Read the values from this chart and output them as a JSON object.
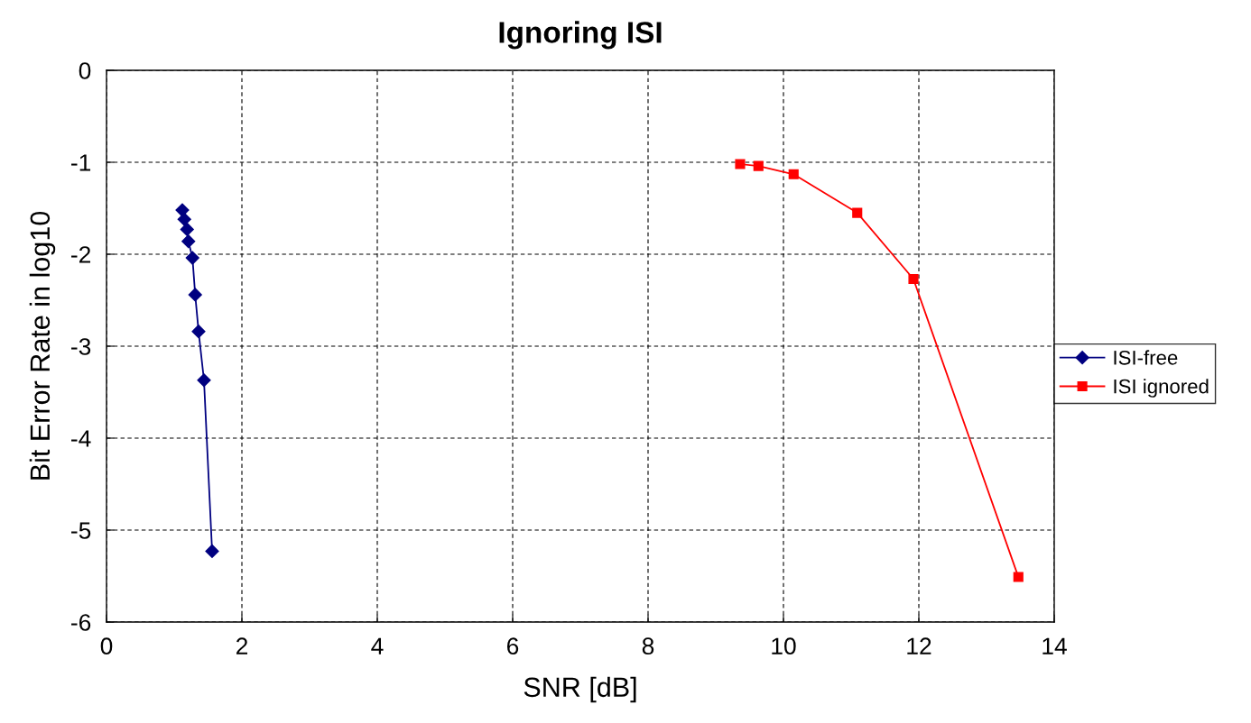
{
  "chart_data": {
    "type": "line",
    "title": "Ignoring ISI",
    "xlabel": "SNR [dB]",
    "ylabel": "Bit Error Rate in log10",
    "xlim": [
      0,
      14
    ],
    "xticks": [
      0,
      2,
      4,
      6,
      8,
      10,
      12,
      14
    ],
    "ylim": [
      -6,
      0
    ],
    "yticks": [
      -6,
      -5,
      -4,
      -3,
      -2,
      -1,
      0
    ],
    "grid": true,
    "legend": "right",
    "series": [
      {
        "name": "ISI-free",
        "color": "#000080",
        "marker": "diamond",
        "x": [
          1.12,
          1.15,
          1.19,
          1.21,
          1.27,
          1.31,
          1.36,
          1.44,
          1.56
        ],
        "values": [
          -1.52,
          -1.62,
          -1.73,
          -1.86,
          -2.04,
          -2.44,
          -2.84,
          -3.37,
          -5.23
        ]
      },
      {
        "name": "ISI ignored",
        "color": "#ff0000",
        "marker": "square",
        "x": [
          9.36,
          9.63,
          10.15,
          11.09,
          11.92,
          13.47
        ],
        "values": [
          -1.02,
          -1.04,
          -1.13,
          -1.55,
          -2.27,
          -5.51
        ]
      }
    ]
  }
}
